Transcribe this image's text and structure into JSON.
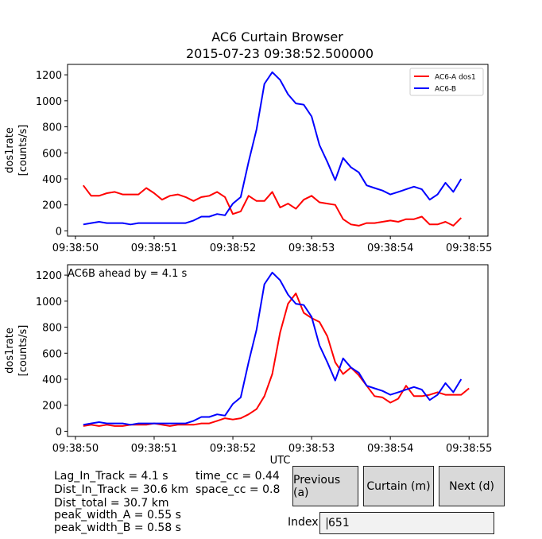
{
  "title": "AC6 Curtain Browser",
  "subtitle": "2015-07-23 09:38:52.500000",
  "colors": {
    "ac6a": "#ff0000",
    "ac6b": "#0000ff"
  },
  "chart_data": [
    {
      "type": "line",
      "ylabel": [
        "dos1rate",
        "[counts/s]"
      ],
      "xlabel": "",
      "ylim": [
        -40,
        1280
      ],
      "xlim": [
        "09:38:49.900",
        "09:38:55.240"
      ],
      "yticks": [
        0,
        200,
        400,
        600,
        800,
        1000,
        1200
      ],
      "xtick_labels": [
        "09:38:50",
        "09:38:51",
        "09:38:52",
        "09:38:53",
        "09:38:54",
        "09:38:55"
      ],
      "legend": {
        "position": "top-right",
        "entries": [
          "AC6-A dos1",
          "AC6-B"
        ]
      },
      "grid": false,
      "annotation": "",
      "series": [
        {
          "name": "AC6-A dos1",
          "color": "#ff0000",
          "x": [
            "09:38:50.1",
            "09:38:50.2",
            "09:38:50.3",
            "09:38:50.4",
            "09:38:50.5",
            "09:38:50.6",
            "09:38:50.7",
            "09:38:50.8",
            "09:38:50.9",
            "09:38:51.0",
            "09:38:51.1",
            "09:38:51.2",
            "09:38:51.3",
            "09:38:51.4",
            "09:38:51.5",
            "09:38:51.6",
            "09:38:51.7",
            "09:38:51.8",
            "09:38:51.9",
            "09:38:52.0",
            "09:38:52.1",
            "09:38:52.2",
            "09:38:52.3",
            "09:38:52.4",
            "09:38:52.5",
            "09:38:52.6",
            "09:38:52.7",
            "09:38:52.8",
            "09:38:52.9",
            "09:38:53.0",
            "09:38:53.1",
            "09:38:53.2",
            "09:38:53.3",
            "09:38:53.4",
            "09:38:53.5",
            "09:38:53.6",
            "09:38:53.7",
            "09:38:53.8",
            "09:38:53.9",
            "09:38:54.0",
            "09:38:54.1",
            "09:38:54.2",
            "09:38:54.3",
            "09:38:54.4",
            "09:38:54.5",
            "09:38:54.6",
            "09:38:54.7",
            "09:38:54.8",
            "09:38:54.9"
          ],
          "y": [
            350,
            270,
            270,
            290,
            300,
            280,
            280,
            280,
            330,
            290,
            240,
            270,
            280,
            260,
            230,
            260,
            270,
            300,
            260,
            130,
            150,
            270,
            230,
            230,
            300,
            180,
            210,
            170,
            240,
            270,
            220,
            210,
            200,
            90,
            50,
            40,
            60,
            60,
            70,
            80,
            70,
            90,
            90,
            110,
            50,
            50,
            70,
            40,
            100
          ]
        },
        {
          "name": "AC6-B",
          "color": "#0000ff",
          "x": [
            "09:38:50.1",
            "09:38:50.2",
            "09:38:50.3",
            "09:38:50.4",
            "09:38:50.5",
            "09:38:50.6",
            "09:38:50.7",
            "09:38:50.8",
            "09:38:50.9",
            "09:38:51.0",
            "09:38:51.1",
            "09:38:51.2",
            "09:38:51.3",
            "09:38:51.4",
            "09:38:51.5",
            "09:38:51.6",
            "09:38:51.7",
            "09:38:51.8",
            "09:38:51.9",
            "09:38:52.0",
            "09:38:52.1",
            "09:38:52.2",
            "09:38:52.3",
            "09:38:52.4",
            "09:38:52.5",
            "09:38:52.6",
            "09:38:52.7",
            "09:38:52.8",
            "09:38:52.9",
            "09:38:53.0",
            "09:38:53.1",
            "09:38:53.2",
            "09:38:53.3",
            "09:38:53.4",
            "09:38:53.5",
            "09:38:53.6",
            "09:38:53.7",
            "09:38:53.8",
            "09:38:53.9",
            "09:38:54.0",
            "09:38:54.1",
            "09:38:54.2",
            "09:38:54.3",
            "09:38:54.4",
            "09:38:54.5",
            "09:38:54.6",
            "09:38:54.7",
            "09:38:54.8",
            "09:38:54.9"
          ],
          "y": [
            50,
            60,
            70,
            60,
            60,
            60,
            50,
            60,
            60,
            60,
            60,
            60,
            60,
            60,
            80,
            110,
            110,
            130,
            120,
            210,
            260,
            530,
            780,
            1130,
            1220,
            1160,
            1050,
            980,
            970,
            880,
            660,
            530,
            390,
            560,
            490,
            450,
            350,
            330,
            310,
            280,
            300,
            320,
            340,
            320,
            240,
            280,
            370,
            300,
            400
          ]
        }
      ]
    },
    {
      "type": "line",
      "ylabel": [
        "dos1rate",
        "[counts/s]"
      ],
      "xlabel": "UTC",
      "ylim": [
        -40,
        1280
      ],
      "xlim": [
        "09:38:49.900",
        "09:38:55.240"
      ],
      "yticks": [
        0,
        200,
        400,
        600,
        800,
        1000,
        1200
      ],
      "xtick_labels": [
        "09:38:50",
        "09:38:51",
        "09:38:52",
        "09:38:53",
        "09:38:54",
        "09:38:55"
      ],
      "grid": false,
      "annotation": "AC6B ahead by = 4.1 s",
      "series": [
        {
          "name": "AC6-A dos1",
          "color": "#ff0000",
          "x": [
            "09:38:50.1",
            "09:38:50.2",
            "09:38:50.3",
            "09:38:50.4",
            "09:38:50.5",
            "09:38:50.6",
            "09:38:50.7",
            "09:38:50.8",
            "09:38:50.9",
            "09:38:51.0",
            "09:38:51.1",
            "09:38:51.2",
            "09:38:51.3",
            "09:38:51.4",
            "09:38:51.5",
            "09:38:51.6",
            "09:38:51.7",
            "09:38:51.8",
            "09:38:51.9",
            "09:38:52.0",
            "09:38:52.1",
            "09:38:52.2",
            "09:38:52.3",
            "09:38:52.4",
            "09:38:52.5",
            "09:38:52.6",
            "09:38:52.7",
            "09:38:52.8",
            "09:38:52.9",
            "09:38:53.0",
            "09:38:53.1",
            "09:38:53.2",
            "09:38:53.3",
            "09:38:53.4",
            "09:38:53.5",
            "09:38:53.6",
            "09:38:53.7",
            "09:38:53.8",
            "09:38:53.9",
            "09:38:54.0",
            "09:38:54.1",
            "09:38:54.2",
            "09:38:54.3",
            "09:38:54.4",
            "09:38:54.5",
            "09:38:54.6",
            "09:38:54.7",
            "09:38:54.8",
            "09:38:54.9",
            "09:38:55.0"
          ],
          "y": [
            40,
            50,
            40,
            50,
            40,
            40,
            50,
            50,
            50,
            60,
            50,
            40,
            50,
            50,
            50,
            60,
            60,
            80,
            100,
            90,
            100,
            130,
            170,
            270,
            440,
            760,
            980,
            1060,
            910,
            870,
            840,
            730,
            530,
            440,
            490,
            430,
            350,
            270,
            260,
            220,
            250,
            350,
            270,
            270,
            280,
            300,
            280,
            280,
            280,
            330
          ]
        },
        {
          "name": "AC6-B",
          "color": "#0000ff",
          "x": [
            "09:38:50.1",
            "09:38:50.2",
            "09:38:50.3",
            "09:38:50.4",
            "09:38:50.5",
            "09:38:50.6",
            "09:38:50.7",
            "09:38:50.8",
            "09:38:50.9",
            "09:38:51.0",
            "09:38:51.1",
            "09:38:51.2",
            "09:38:51.3",
            "09:38:51.4",
            "09:38:51.5",
            "09:38:51.6",
            "09:38:51.7",
            "09:38:51.8",
            "09:38:51.9",
            "09:38:52.0",
            "09:38:52.1",
            "09:38:52.2",
            "09:38:52.3",
            "09:38:52.4",
            "09:38:52.5",
            "09:38:52.6",
            "09:38:52.7",
            "09:38:52.8",
            "09:38:52.9",
            "09:38:53.0",
            "09:38:53.1",
            "09:38:53.2",
            "09:38:53.3",
            "09:38:53.4",
            "09:38:53.5",
            "09:38:53.6",
            "09:38:53.7",
            "09:38:53.8",
            "09:38:53.9",
            "09:38:54.0",
            "09:38:54.1",
            "09:38:54.2",
            "09:38:54.3",
            "09:38:54.4",
            "09:38:54.5",
            "09:38:54.6",
            "09:38:54.7",
            "09:38:54.8",
            "09:38:54.9"
          ],
          "y": [
            50,
            60,
            70,
            60,
            60,
            60,
            50,
            60,
            60,
            60,
            60,
            60,
            60,
            60,
            80,
            110,
            110,
            130,
            120,
            210,
            260,
            530,
            780,
            1130,
            1220,
            1160,
            1050,
            980,
            970,
            880,
            660,
            530,
            390,
            560,
            490,
            450,
            350,
            330,
            310,
            280,
            300,
            320,
            340,
            320,
            240,
            280,
            370,
            300,
            400
          ]
        }
      ]
    }
  ],
  "stats": {
    "lag_in_track": "Lag_In_Track = 4.1 s",
    "dist_in_track": "Dist_In_Track = 30.6 km",
    "dist_total": "Dist_total = 30.7 km",
    "peak_width_a": "peak_width_A = 0.55 s",
    "peak_width_b": "peak_width_B = 0.58 s",
    "time_cc": "time_cc = 0.44",
    "space_cc": "space_cc = 0.8"
  },
  "controls": {
    "previous_label": "Previous (a)",
    "curtain_label": "Curtain (m)",
    "next_label": "Next (d)",
    "index_label": "Index",
    "index_value": "651"
  }
}
